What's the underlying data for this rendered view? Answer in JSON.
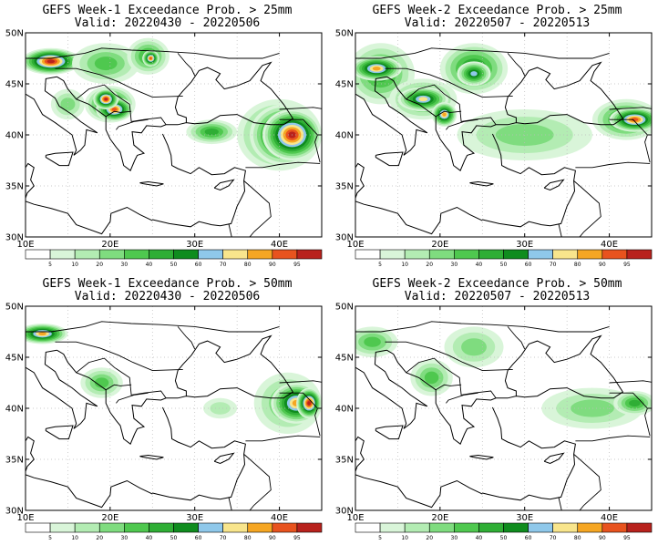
{
  "levels": [
    5,
    10,
    20,
    30,
    40,
    50,
    60,
    70,
    80,
    90,
    95
  ],
  "colors": {
    "white": "#ffffff",
    "c5": "#d9f5d9",
    "c10": "#b3ecb3",
    "c20": "#7fdc7f",
    "c30": "#4fc84f",
    "c40": "#2fae35",
    "c50": "#0f8c1e",
    "c60": "#8fc8ea",
    "c70": "#f8e58c",
    "c80": "#f5a623",
    "c90": "#e8531e",
    "c95": "#b8221d",
    "c100": "#8c1a1a",
    "border": "#000000",
    "grid": "#bbbbbb"
  },
  "axes": {
    "xticks": [
      "10E",
      "20E",
      "30E",
      "40E"
    ],
    "yticks": [
      "50N",
      "45N",
      "40N",
      "35N",
      "30N"
    ],
    "lon_range": [
      10,
      45
    ],
    "lat_range": [
      30,
      50
    ]
  },
  "colorbar": {
    "labels": [
      "5",
      "10",
      "20",
      "30",
      "40",
      "50",
      "60",
      "70",
      "80",
      "90",
      "95"
    ]
  },
  "panels": [
    {
      "title": "GEFS Week-1 Exceedance Prob. > 25mm",
      "valid": "Valid: 20220430 - 20220506",
      "blobs": [
        {
          "lon": 13,
          "lat": 47.2,
          "rx": 3.5,
          "ry": 1.3,
          "level": 95
        },
        {
          "lon": 19.5,
          "lat": 47,
          "rx": 4,
          "ry": 2,
          "level": 30
        },
        {
          "lon": 24.5,
          "lat": 47.7,
          "rx": 2.5,
          "ry": 1.8,
          "level": 40
        },
        {
          "lon": 24.8,
          "lat": 47.5,
          "rx": 1,
          "ry": 0.8,
          "level": 90
        },
        {
          "lon": 20,
          "lat": 43,
          "rx": 3,
          "ry": 1.8,
          "level": 60
        },
        {
          "lon": 20.5,
          "lat": 42.5,
          "rx": 2.2,
          "ry": 1.2,
          "level": 90
        },
        {
          "lon": 19.5,
          "lat": 43.5,
          "rx": 1.5,
          "ry": 1,
          "level": 95
        },
        {
          "lon": 32,
          "lat": 40.3,
          "rx": 3,
          "ry": 1.2,
          "level": 40
        },
        {
          "lon": 40,
          "lat": 40,
          "rx": 5,
          "ry": 3.5,
          "level": 50
        },
        {
          "lon": 40.5,
          "lat": 40,
          "rx": 4,
          "ry": 3,
          "level": 80
        },
        {
          "lon": 41.5,
          "lat": 40,
          "rx": 3.5,
          "ry": 2.5,
          "level": 95
        },
        {
          "lon": 15,
          "lat": 43,
          "rx": 2,
          "ry": 1.5,
          "level": 20
        }
      ]
    },
    {
      "title": "GEFS Week-2 Exceedance Prob. > 25mm",
      "valid": "Valid: 20220507 - 20220513",
      "blobs": [
        {
          "lon": 13,
          "lat": 46,
          "rx": 4,
          "ry": 3,
          "level": 40
        },
        {
          "lon": 12.5,
          "lat": 46.5,
          "rx": 3,
          "ry": 1.2,
          "level": 80
        },
        {
          "lon": 24,
          "lat": 46.5,
          "rx": 4,
          "ry": 2.5,
          "level": 50
        },
        {
          "lon": 24,
          "lat": 46,
          "rx": 2,
          "ry": 1.2,
          "level": 60
        },
        {
          "lon": 18,
          "lat": 43.5,
          "rx": 4,
          "ry": 2,
          "level": 40
        },
        {
          "lon": 18,
          "lat": 43.5,
          "rx": 3,
          "ry": 1.2,
          "level": 70
        },
        {
          "lon": 20.5,
          "lat": 42,
          "rx": 1.5,
          "ry": 1.2,
          "level": 80
        },
        {
          "lon": 30,
          "lat": 40,
          "rx": 8,
          "ry": 2.5,
          "level": 20
        },
        {
          "lon": 42,
          "lat": 41.5,
          "rx": 4,
          "ry": 2,
          "level": 50
        },
        {
          "lon": 43,
          "lat": 41.5,
          "rx": 3,
          "ry": 1.2,
          "level": 90
        }
      ]
    },
    {
      "title": "GEFS Week-1 Exceedance Prob. > 50mm",
      "valid": "Valid: 20220430 - 20220506",
      "blobs": [
        {
          "lon": 12,
          "lat": 47.3,
          "rx": 3,
          "ry": 1,
          "level": 80
        },
        {
          "lon": 19,
          "lat": 42.5,
          "rx": 2.5,
          "ry": 1.5,
          "level": 30
        },
        {
          "lon": 41,
          "lat": 40.5,
          "rx": 4,
          "ry": 3,
          "level": 30
        },
        {
          "lon": 42,
          "lat": 40.5,
          "rx": 3,
          "ry": 2,
          "level": 80
        },
        {
          "lon": 43.5,
          "lat": 40.5,
          "rx": 1.5,
          "ry": 1.5,
          "level": 95
        },
        {
          "lon": 33,
          "lat": 40,
          "rx": 2,
          "ry": 1,
          "level": 10
        }
      ]
    },
    {
      "title": "GEFS Week-2 Exceedance Prob. > 50mm",
      "valid": "Valid: 20220507 - 20220513",
      "blobs": [
        {
          "lon": 12,
          "lat": 46.5,
          "rx": 3,
          "ry": 1.5,
          "level": 30
        },
        {
          "lon": 24,
          "lat": 46,
          "rx": 3.5,
          "ry": 2,
          "level": 20
        },
        {
          "lon": 19,
          "lat": 43,
          "rx": 2.5,
          "ry": 1.8,
          "level": 30
        },
        {
          "lon": 38,
          "lat": 40,
          "rx": 6,
          "ry": 2,
          "level": 20
        },
        {
          "lon": 43,
          "lat": 40.5,
          "rx": 2.5,
          "ry": 1.2,
          "level": 40
        }
      ]
    }
  ]
}
